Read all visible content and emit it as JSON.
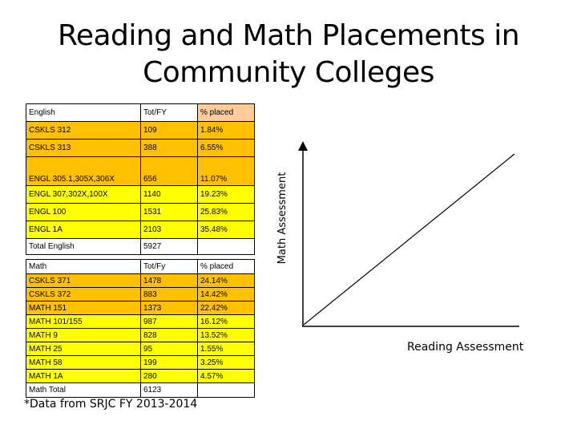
{
  "title_line1": "Reading and Math Placements in",
  "title_line2": "Community Colleges",
  "english_table": {
    "header": [
      "English",
      "Tot/FY",
      "% placed"
    ],
    "rows": [
      [
        "CSKLS 312",
        "109",
        "1.84%"
      ],
      [
        "CSKLS 313",
        "388",
        "6.55%"
      ],
      [
        "ENGL 305.1,305X,306X",
        "656",
        "11.07%"
      ],
      [
        "ENGL 307,302X,100X",
        "1140",
        "19.23%"
      ],
      [
        "ENGL 100",
        "1531",
        "25.83%"
      ],
      [
        "ENGL 1A",
        "2103",
        "35.48%"
      ]
    ],
    "total": [
      "Total English",
      "5927",
      ""
    ]
  },
  "math_table": {
    "header": [
      "Math",
      "Tot/Fy",
      "% placed"
    ],
    "rows": [
      [
        "CSKLS 371",
        "1478",
        "24.14%"
      ],
      [
        "CSKLS 372",
        "883",
        "14.42%"
      ],
      [
        "MATH 151",
        "1373",
        "22.42%"
      ],
      [
        "MATH 101/155",
        "987",
        "16.12%"
      ],
      [
        "MATH 9",
        "828",
        "13.52%"
      ],
      [
        "MATH 25",
        "95",
        "1.55%"
      ],
      [
        "MATH 58",
        "199",
        "3.25%"
      ],
      [
        "MATH 1A",
        "280",
        "4.57%"
      ]
    ],
    "total": [
      "Math Total",
      "6123",
      ""
    ]
  },
  "colors": {
    "english_header": "#ffffff",
    "english_rows": [
      "#ffc000",
      "#ffc000",
      "#ffc000",
      "#ffff00",
      "#ffff00",
      "#ffff00"
    ],
    "english_pct_rows": [
      "#ffc000",
      "#ffc000",
      "#ffc000",
      "#ffff00",
      "#ffff00",
      "#ffff00"
    ],
    "english_header_pct": "#ffcc99",
    "math_rows": [
      "#ffc000",
      "#ffc000",
      "#ffc000",
      "#ffff00",
      "#ffff00",
      "#ffff00",
      "#ffff00",
      "#ffff00"
    ],
    "white": "#ffffff"
  },
  "footnote": "*Data from SRJC FY 2013-2014",
  "diagram": {
    "y_label": "Math Assessment",
    "x_label": "Reading Assessment"
  }
}
